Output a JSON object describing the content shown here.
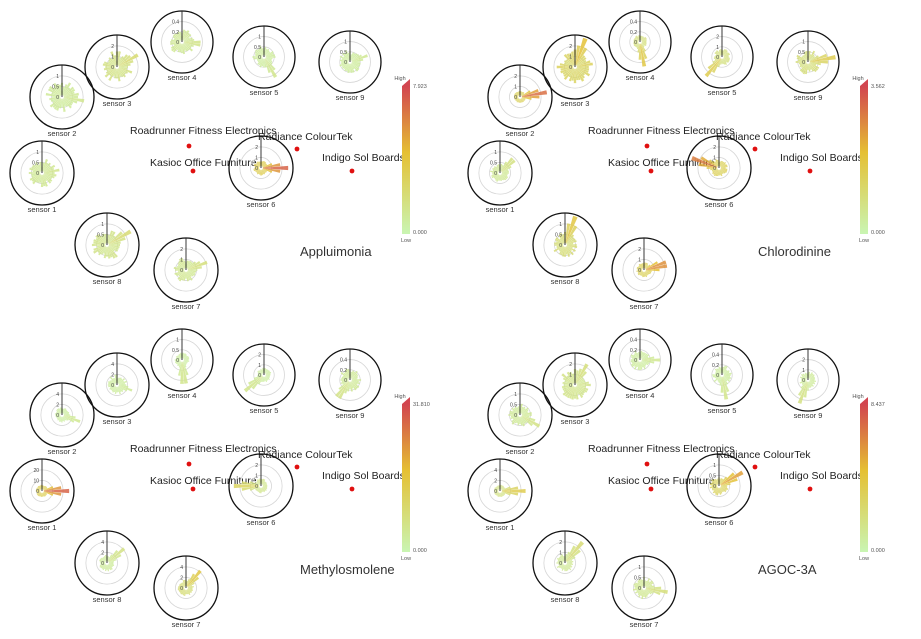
{
  "factories": [
    {
      "name": "Roadrunner Fitness Electronics"
    },
    {
      "name": "Radiance ColourTek"
    },
    {
      "name": "Kasioc Office Furniture"
    },
    {
      "name": "Indigo Sol Boards"
    }
  ],
  "legend": {
    "high_label": "High",
    "low_label": "Low"
  },
  "colors": {
    "low": "#c9f5b3",
    "mid": "#e5c033",
    "high": "#d2454f",
    "ring": "#111111",
    "grid": "#d6d6d6",
    "marker": "#e01010"
  },
  "sensor_labels": [
    "sensor 1",
    "sensor 2",
    "sensor 3",
    "sensor 4",
    "sensor 5",
    "sensor 6",
    "sensor 7",
    "sensor 8",
    "sensor 9"
  ],
  "chart_data": [
    {
      "type": "radial-bar",
      "title": "Appluimonia",
      "color_scale": {
        "min": "0.000",
        "max": "7.923"
      },
      "sensors": [
        {
          "label": "sensor 1",
          "ticks": [
            "0.5",
            "1"
          ],
          "max_level": 0.25,
          "peak_angle": 80,
          "peak_len": 0.55,
          "spread": 0.7
        },
        {
          "label": "sensor 2",
          "ticks": [
            "0.5",
            "1"
          ],
          "max_level": 0.2,
          "peak_angle": 100,
          "peak_len": 0.7,
          "spread": 0.85
        },
        {
          "label": "sensor 3",
          "ticks": [
            "1",
            "2"
          ],
          "max_level": 0.35,
          "peak_angle": 60,
          "peak_len": 0.75,
          "spread": 0.8
        },
        {
          "label": "sensor 4",
          "ticks": [
            "0.2",
            "0.4"
          ],
          "max_level": 0.25,
          "peak_angle": 95,
          "peak_len": 0.7,
          "spread": 0.65
        },
        {
          "label": "sensor 5",
          "ticks": [
            "0.5",
            "1"
          ],
          "max_level": 0.2,
          "peak_angle": 150,
          "peak_len": 0.75,
          "spread": 0.5
        },
        {
          "label": "sensor 6",
          "ticks": [
            "1",
            "2"
          ],
          "max_level": 1.0,
          "peak_angle": 90,
          "peak_len": 0.85,
          "spread": 0.2
        },
        {
          "label": "sensor 7",
          "ticks": [
            "1",
            "2"
          ],
          "max_level": 0.3,
          "peak_angle": 70,
          "peak_len": 0.7,
          "spread": 0.55
        },
        {
          "label": "sensor 8",
          "ticks": [
            "0.5",
            "1"
          ],
          "max_level": 0.3,
          "peak_angle": 60,
          "peak_len": 0.85,
          "spread": 0.75
        },
        {
          "label": "sensor 9",
          "ticks": [
            "0.5",
            "1"
          ],
          "max_level": 0.2,
          "peak_angle": 70,
          "peak_len": 0.6,
          "spread": 0.55
        }
      ]
    },
    {
      "type": "radial-bar",
      "title": "Chlorodinine",
      "color_scale": {
        "min": "0.000",
        "max": "3.562"
      },
      "sensors": [
        {
          "label": "sensor 1",
          "ticks": [
            "0.5",
            "1"
          ],
          "max_level": 0.3,
          "peak_angle": 45,
          "peak_len": 0.7,
          "spread": 0.35
        },
        {
          "label": "sensor 2",
          "ticks": [
            "1",
            "2"
          ],
          "max_level": 0.95,
          "peak_angle": 80,
          "peak_len": 0.85,
          "spread": 0.1
        },
        {
          "label": "sensor 3",
          "ticks": [
            "1",
            "2"
          ],
          "max_level": 0.55,
          "peak_angle": 20,
          "peak_len": 0.95,
          "spread": 0.95
        },
        {
          "label": "sensor 4",
          "ticks": [
            "0.2",
            "0.4"
          ],
          "max_level": 0.55,
          "peak_angle": 170,
          "peak_len": 0.8,
          "spread": 0.2
        },
        {
          "label": "sensor 5",
          "ticks": [
            "1",
            "2"
          ],
          "max_level": 0.5,
          "peak_angle": 220,
          "peak_len": 0.8,
          "spread": 0.3
        },
        {
          "label": "sensor 6",
          "ticks": [
            "1",
            "2"
          ],
          "max_level": 0.85,
          "peak_angle": 290,
          "peak_len": 0.9,
          "spread": 0.3
        },
        {
          "label": "sensor 7",
          "ticks": [
            "1",
            "2"
          ],
          "max_level": 0.9,
          "peak_angle": 75,
          "peak_len": 0.85,
          "spread": 0.2
        },
        {
          "label": "sensor 8",
          "ticks": [
            "0.5",
            "1"
          ],
          "max_level": 0.5,
          "peak_angle": 20,
          "peak_len": 0.95,
          "spread": 0.55
        },
        {
          "label": "sensor 9",
          "ticks": [
            "0.5",
            "1"
          ],
          "max_level": 0.45,
          "peak_angle": 80,
          "peak_len": 0.9,
          "spread": 0.6
        }
      ]
    },
    {
      "type": "radial-bar",
      "title": "Methylosmolene",
      "color_scale": {
        "min": "0.000",
        "max": "31.810"
      },
      "sensors": [
        {
          "label": "sensor 1",
          "ticks": [
            "10",
            "20"
          ],
          "max_level": 1.0,
          "peak_angle": 90,
          "peak_len": 0.85,
          "spread": 0.1
        },
        {
          "label": "sensor 2",
          "ticks": [
            "2",
            "4"
          ],
          "max_level": 0.2,
          "peak_angle": 110,
          "peak_len": 0.6,
          "spread": 0.2
        },
        {
          "label": "sensor 3",
          "ticks": [
            "2",
            "4"
          ],
          "max_level": 0.2,
          "peak_angle": 110,
          "peak_len": 0.5,
          "spread": 0.4
        },
        {
          "label": "sensor 4",
          "ticks": [
            "0.5",
            "1"
          ],
          "max_level": 0.2,
          "peak_angle": 175,
          "peak_len": 0.9,
          "spread": 0.2
        },
        {
          "label": "sensor 5",
          "ticks": [
            "1",
            "2"
          ],
          "max_level": 0.2,
          "peak_angle": 230,
          "peak_len": 0.8,
          "spread": 0.2
        },
        {
          "label": "sensor 6",
          "ticks": [
            "1",
            "2"
          ],
          "max_level": 0.4,
          "peak_angle": 270,
          "peak_len": 0.85,
          "spread": 0.2
        },
        {
          "label": "sensor 7",
          "ticks": [
            "2",
            "4"
          ],
          "max_level": 0.6,
          "peak_angle": 40,
          "peak_len": 0.7,
          "spread": 0.25
        },
        {
          "label": "sensor 8",
          "ticks": [
            "2",
            "4"
          ],
          "max_level": 0.25,
          "peak_angle": 50,
          "peak_len": 0.7,
          "spread": 0.25
        },
        {
          "label": "sensor 9",
          "ticks": [
            "0.2",
            "0.4"
          ],
          "max_level": 0.25,
          "peak_angle": 215,
          "peak_len": 0.8,
          "spread": 0.5
        }
      ]
    },
    {
      "type": "radial-bar",
      "title": "AGOC-3A",
      "color_scale": {
        "min": "0.000",
        "max": "8.437"
      },
      "sensors": [
        {
          "label": "sensor 1",
          "ticks": [
            "2",
            "4"
          ],
          "max_level": 0.5,
          "peak_angle": 90,
          "peak_len": 0.8,
          "spread": 0.1
        },
        {
          "label": "sensor 2",
          "ticks": [
            "0.5",
            "1"
          ],
          "max_level": 0.25,
          "peak_angle": 120,
          "peak_len": 0.7,
          "spread": 0.5
        },
        {
          "label": "sensor 3",
          "ticks": [
            "1",
            "2"
          ],
          "max_level": 0.3,
          "peak_angle": 30,
          "peak_len": 0.75,
          "spread": 0.85
        },
        {
          "label": "sensor 4",
          "ticks": [
            "0.2",
            "0.4"
          ],
          "max_level": 0.2,
          "peak_angle": 90,
          "peak_len": 0.65,
          "spread": 0.45
        },
        {
          "label": "sensor 5",
          "ticks": [
            "0.2",
            "0.4"
          ],
          "max_level": 0.2,
          "peak_angle": 170,
          "peak_len": 0.8,
          "spread": 0.4
        },
        {
          "label": "sensor 6",
          "ticks": [
            "0.5",
            "1"
          ],
          "max_level": 0.75,
          "peak_angle": 60,
          "peak_len": 0.85,
          "spread": 0.35
        },
        {
          "label": "sensor 7",
          "ticks": [
            "0.5",
            "1"
          ],
          "max_level": 0.3,
          "peak_angle": 100,
          "peak_len": 0.75,
          "spread": 0.45
        },
        {
          "label": "sensor 8",
          "ticks": [
            "1",
            "2"
          ],
          "max_level": 0.3,
          "peak_angle": 40,
          "peak_len": 0.85,
          "spread": 0.3
        },
        {
          "label": "sensor 9",
          "ticks": [
            "1",
            "2"
          ],
          "max_level": 0.25,
          "peak_angle": 200,
          "peak_len": 0.8,
          "spread": 0.3
        }
      ]
    }
  ]
}
